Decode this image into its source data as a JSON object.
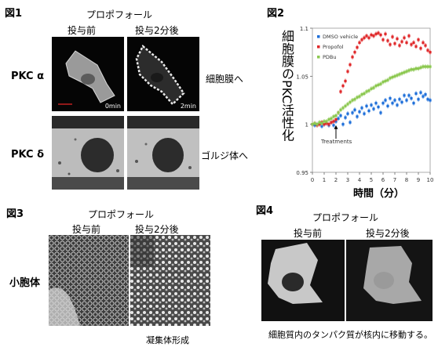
{
  "fig1": {
    "label": "図1",
    "drug": "プロポフォール",
    "col_before": "投与前",
    "col_after": "投与2分後",
    "row1_label": "PKC α",
    "row2_label": "PKC δ",
    "row1_result": "細胞膜へ",
    "row2_result": "ゴルジ体へ",
    "stamp_before": "0min",
    "stamp_after": "2min"
  },
  "fig2": {
    "label": "図2",
    "ylabel": "細胞膜のPKC活性化",
    "xlabel": "時間（分）",
    "annotation": "Treatments"
  },
  "chart_data": {
    "type": "scatter",
    "xlabel": "時間（分）",
    "ylabel": "細胞膜のPKC活性化",
    "xlim": [
      0,
      10
    ],
    "ylim": [
      0.95,
      1.1
    ],
    "xticks": [
      "0",
      "1",
      "2",
      "3",
      "4",
      "5",
      "6",
      "7",
      "8",
      "9",
      "10"
    ],
    "yticks": [
      "0.95",
      "1",
      "1.05",
      "1.1"
    ],
    "legend_position": "top-left",
    "series": [
      {
        "name": "DMSO vehicle",
        "color": "#1e6fd9",
        "x": [
          0,
          0.2,
          0.4,
          0.6,
          0.8,
          1,
          1.2,
          1.4,
          1.6,
          1.8,
          2,
          2.2,
          2.4,
          2.6,
          2.8,
          3,
          3.2,
          3.4,
          3.6,
          3.8,
          4,
          4.2,
          4.4,
          4.6,
          4.8,
          5,
          5.2,
          5.4,
          5.6,
          5.8,
          6,
          6.2,
          6.4,
          6.6,
          6.8,
          7,
          7.2,
          7.4,
          7.6,
          7.8,
          8,
          8.2,
          8.4,
          8.6,
          8.8,
          9,
          9.2,
          9.4,
          9.6,
          9.8,
          10
        ],
        "y": [
          1.0,
          0.999,
          1.0,
          1.001,
          0.998,
          1.0,
          1.001,
          0.999,
          1.002,
          0.999,
          1.003,
          1.006,
          1.009,
          1.0,
          1.007,
          1.011,
          1.002,
          1.012,
          1.015,
          1.008,
          1.013,
          1.017,
          1.011,
          1.019,
          1.014,
          1.02,
          1.016,
          1.022,
          1.018,
          1.012,
          1.022,
          1.025,
          1.019,
          1.027,
          1.022,
          1.025,
          1.02,
          1.026,
          1.023,
          1.03,
          1.025,
          1.03,
          1.027,
          1.022,
          1.032,
          1.026,
          1.033,
          1.029,
          1.031,
          1.026,
          1.025
        ]
      },
      {
        "name": "Propofol",
        "color": "#e0282a",
        "x": [
          0,
          0.2,
          0.4,
          0.6,
          0.8,
          1,
          1.2,
          1.4,
          1.6,
          1.8,
          2,
          2.2,
          2.4,
          2.6,
          2.8,
          3,
          3.2,
          3.4,
          3.6,
          3.8,
          4,
          4.2,
          4.4,
          4.6,
          4.8,
          5,
          5.2,
          5.4,
          5.6,
          5.8,
          6,
          6.2,
          6.4,
          6.6,
          6.8,
          7,
          7.2,
          7.4,
          7.6,
          7.8,
          8,
          8.2,
          8.4,
          8.6,
          8.8,
          9,
          9.2,
          9.4,
          9.6,
          9.8,
          10
        ],
        "y": [
          1.0,
          1.001,
          0.999,
          1.0,
          1.002,
          1.0,
          1.001,
          1.0,
          1.002,
          1.003,
          1.005,
          1.012,
          1.034,
          1.04,
          1.045,
          1.055,
          1.062,
          1.07,
          1.075,
          1.08,
          1.085,
          1.088,
          1.09,
          1.092,
          1.09,
          1.093,
          1.092,
          1.094,
          1.095,
          1.093,
          1.088,
          1.094,
          1.087,
          1.083,
          1.091,
          1.084,
          1.089,
          1.082,
          1.086,
          1.09,
          1.085,
          1.092,
          1.083,
          1.085,
          1.081,
          1.088,
          1.079,
          1.085,
          1.082,
          1.077,
          1.075
        ]
      },
      {
        "name": "PDBu",
        "color": "#8cc850",
        "x": [
          0,
          0.2,
          0.4,
          0.6,
          0.8,
          1,
          1.2,
          1.4,
          1.6,
          1.8,
          2,
          2.2,
          2.4,
          2.6,
          2.8,
          3,
          3.2,
          3.4,
          3.6,
          3.8,
          4,
          4.2,
          4.4,
          4.6,
          4.8,
          5,
          5.2,
          5.4,
          5.6,
          5.8,
          6,
          6.2,
          6.4,
          6.6,
          6.8,
          7,
          7.2,
          7.4,
          7.6,
          7.8,
          8,
          8.2,
          8.4,
          8.6,
          8.8,
          9,
          9.2,
          9.4,
          9.6,
          9.8,
          10
        ],
        "y": [
          1.0,
          1.001,
          1.0,
          1.002,
          1.001,
          1.003,
          1.003,
          1.005,
          1.006,
          1.008,
          1.009,
          1.012,
          1.015,
          1.017,
          1.019,
          1.021,
          1.023,
          1.025,
          1.026,
          1.028,
          1.029,
          1.031,
          1.032,
          1.034,
          1.035,
          1.037,
          1.038,
          1.04,
          1.041,
          1.042,
          1.044,
          1.045,
          1.046,
          1.048,
          1.049,
          1.05,
          1.051,
          1.052,
          1.053,
          1.054,
          1.055,
          1.056,
          1.057,
          1.057,
          1.058,
          1.058,
          1.059,
          1.06,
          1.06,
          1.06,
          1.06
        ]
      }
    ]
  },
  "fig3": {
    "label": "図3",
    "drug": "プロポフォール",
    "col_before": "投与前",
    "col_after": "投与2分後",
    "row_label": "小胞体",
    "caption": "凝集体形成"
  },
  "fig4": {
    "label": "図4",
    "drug": "プロポフォール",
    "col_before": "投与前",
    "col_after": "投与2分後",
    "caption": "細胞質内のタンパク質が核内に移動する。"
  }
}
